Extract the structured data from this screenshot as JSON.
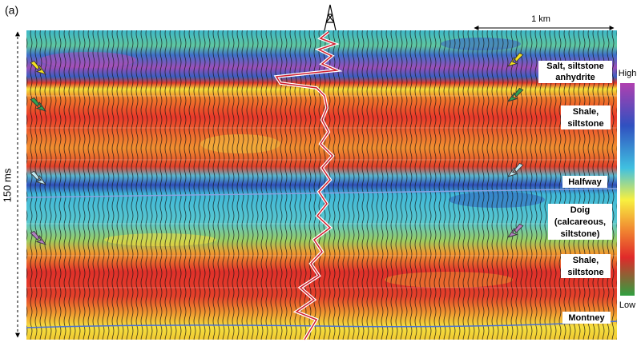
{
  "panel_label": "(a)",
  "scale_bar": "1 km",
  "time_scale": "150 ms",
  "color_bar": {
    "high": "High",
    "low": "Low"
  },
  "labels": [
    {
      "lines": [
        "Salt, siltstone",
        "anhydrite"
      ]
    },
    {
      "lines": [
        "Shale,",
        "siltstone"
      ]
    },
    {
      "lines": [
        "Halfway"
      ]
    },
    {
      "lines": [
        "Doig",
        "(calcareous,",
        "siltstone)"
      ]
    },
    {
      "lines": [
        "Shale,",
        "siltstone"
      ]
    },
    {
      "lines": [
        "Montney"
      ]
    }
  ]
}
